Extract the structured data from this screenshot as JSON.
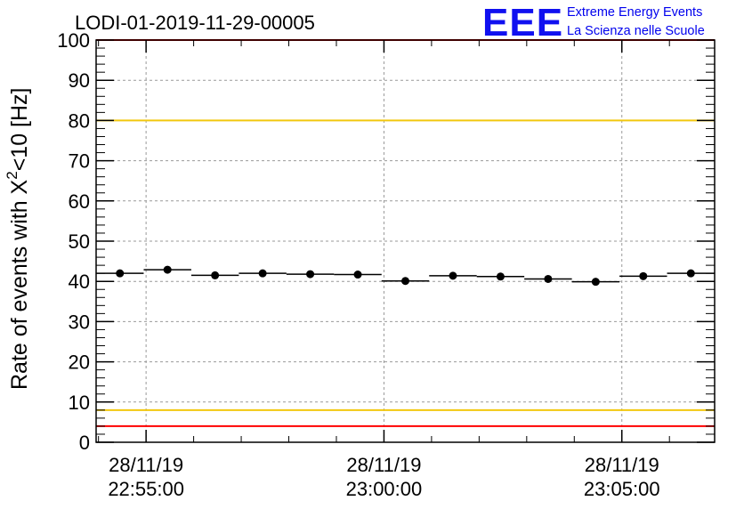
{
  "chart_data": {
    "type": "scatter",
    "title": "LODI-01-2019-11-29-00005",
    "ylabel": "Rate of events with X",
    "ylabel_sup": "2",
    "ylabel_suffix": "<10 [Hz]",
    "ylim": [
      0,
      100
    ],
    "yticks": [
      0,
      10,
      20,
      30,
      40,
      50,
      60,
      70,
      80,
      90,
      100
    ],
    "xlim": [
      "22:53:57",
      "23:06:57"
    ],
    "xticks": [
      {
        "date": "28/11/19",
        "time": "22:55:00"
      },
      {
        "date": "28/11/19",
        "time": "23:00:00"
      },
      {
        "date": "28/11/19",
        "time": "23:05:00"
      }
    ],
    "grid": true,
    "x_bin_width_s": 60,
    "series": [
      {
        "x": [
          "22:54:27",
          "22:55:27",
          "22:56:27",
          "22:57:27",
          "22:58:27",
          "22:59:27",
          "23:00:27",
          "23:01:27",
          "23:02:27",
          "23:03:27",
          "23:04:27",
          "23:05:27",
          "23:06:27"
        ],
        "y": [
          42.0,
          42.9,
          41.5,
          42.0,
          41.8,
          41.7,
          40.1,
          41.4,
          41.2,
          40.6,
          39.9,
          41.3,
          42.0
        ]
      }
    ],
    "reference_lines": [
      {
        "y": 100,
        "color": "#ff0000"
      },
      {
        "y": 80,
        "color": "#f2c80f"
      },
      {
        "y": 8,
        "color": "#f2c80f"
      },
      {
        "y": 4,
        "color": "#ff0000"
      }
    ]
  },
  "logo": {
    "mark": "EEE",
    "line1": "Extreme Energy Events",
    "line2": "La Scienza nelle Scuole",
    "color": "#0000ee"
  }
}
